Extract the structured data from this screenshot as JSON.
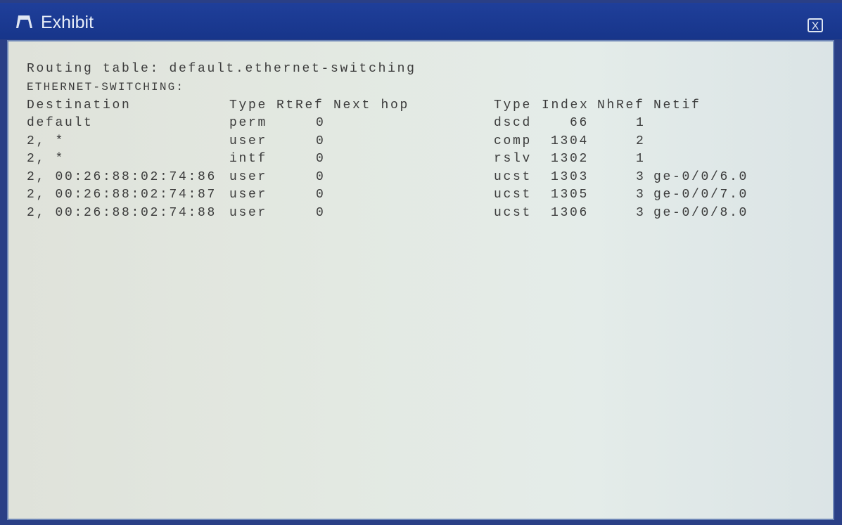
{
  "window": {
    "title": "Exhibit",
    "icon": "easel-icon",
    "close_icon": "close-icon",
    "close_label": "X"
  },
  "output": {
    "line1": "Routing table: default.ethernet-switching",
    "line2": "ETHERNET-SWITCHING:",
    "headers": {
      "destination": "Destination",
      "type": "Type",
      "rtref": "RtRef",
      "next_hop": "Next hop",
      "type2": "Type",
      "index": "Index",
      "nhref": "NhRef",
      "netif": "Netif"
    },
    "rows": [
      {
        "destination": "default",
        "type": "perm",
        "rtref": "0",
        "type2": "dscd",
        "index": "66",
        "nhref": "1",
        "netif": ""
      },
      {
        "destination": "2, *",
        "type": "user",
        "rtref": "0",
        "type2": "comp",
        "index": "1304",
        "nhref": "2",
        "netif": ""
      },
      {
        "destination": "2, *",
        "type": "intf",
        "rtref": "0",
        "type2": "rslv",
        "index": "1302",
        "nhref": "1",
        "netif": ""
      },
      {
        "destination": "2, 00:26:88:02:74:86",
        "type": "user",
        "rtref": "0",
        "type2": "ucst",
        "index": "1303",
        "nhref": "3",
        "netif": "ge-0/0/6.0"
      },
      {
        "destination": "2, 00:26:88:02:74:87",
        "type": "user",
        "rtref": "0",
        "type2": "ucst",
        "index": "1305",
        "nhref": "3",
        "netif": "ge-0/0/7.0"
      },
      {
        "destination": "2, 00:26:88:02:74:88",
        "type": "user",
        "rtref": "0",
        "type2": "ucst",
        "index": "1306",
        "nhref": "3",
        "netif": "ge-0/0/8.0"
      }
    ]
  }
}
